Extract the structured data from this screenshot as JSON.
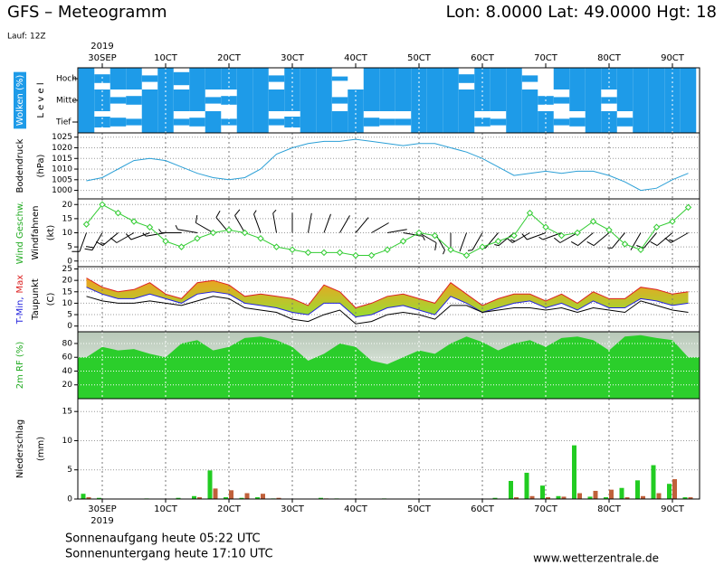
{
  "header": {
    "title": "GFS – Meteogramm",
    "location": "Lon: 8.0000  Lat: 49.0000  Hgt: 18",
    "run": "Lauf: 12Z"
  },
  "time_axis": {
    "year": "2019",
    "categories": [
      null,
      "30SEP",
      null,
      null,
      null,
      "10CT",
      null,
      null,
      null,
      "20CT",
      null,
      null,
      null,
      "30CT",
      null,
      null,
      null,
      "40CT",
      null,
      null,
      null,
      "50CT",
      null,
      null,
      null,
      "60CT",
      null,
      null,
      null,
      "70CT",
      null,
      null,
      null,
      "80CT",
      null,
      null,
      null,
      "90CT",
      null
    ]
  },
  "chart_data": [
    {
      "type": "cloud",
      "ylabel": [
        [
          {
            "text": "Wolken (%)",
            "color": "#ffffff",
            "bg": "#1e9be8"
          }
        ],
        [
          {
            "text": "L e v e l",
            "color": "#000000"
          }
        ]
      ],
      "series": [
        {
          "name": "Hoch",
          "color": "#1e9be8",
          "values": [
            100,
            40,
            100,
            100,
            30,
            100,
            60,
            100,
            100,
            100,
            100,
            100,
            30,
            100,
            100,
            100,
            20,
            0,
            100,
            100,
            100,
            100,
            100,
            100,
            40,
            100,
            100,
            100,
            30,
            0,
            100,
            100,
            100,
            100,
            100,
            100,
            100,
            100,
            100
          ]
        },
        {
          "name": "Mittel",
          "color": "#1e9be8",
          "values": [
            100,
            100,
            30,
            40,
            100,
            100,
            100,
            100,
            30,
            40,
            100,
            100,
            100,
            100,
            100,
            100,
            30,
            100,
            100,
            100,
            100,
            100,
            100,
            100,
            100,
            100,
            100,
            100,
            100,
            40,
            30,
            100,
            100,
            30,
            100,
            100,
            100,
            100,
            100
          ]
        },
        {
          "name": "Tief",
          "color": "#1e9be8",
          "values": [
            100,
            50,
            40,
            30,
            100,
            100,
            30,
            40,
            100,
            30,
            100,
            100,
            30,
            50,
            100,
            100,
            100,
            100,
            40,
            30,
            30,
            100,
            100,
            100,
            100,
            40,
            30,
            100,
            100,
            100,
            30,
            40,
            100,
            100,
            40,
            100,
            100,
            100,
            100
          ]
        }
      ]
    },
    {
      "type": "line",
      "ylabel": [
        [
          {
            "text": "Bodendruck",
            "color": "#000000"
          }
        ],
        [
          {
            "text": "(hPa)",
            "color": "#000000"
          }
        ]
      ],
      "ylim": [
        996,
        1027
      ],
      "yticks": [
        1000,
        1005,
        1010,
        1015,
        1020,
        1025
      ],
      "grid": true,
      "series": [
        {
          "color": "#2a9fd6",
          "values": [
            1004.5,
            1006,
            1010,
            1014,
            1015,
            1014,
            1011,
            1008,
            1006,
            1005,
            1006,
            1010,
            1017,
            1020,
            1022,
            1023,
            1023,
            1024,
            1023,
            1022,
            1021,
            1022,
            1022,
            1020,
            1018,
            1015,
            1011,
            1007,
            1008,
            1009,
            1008,
            1009,
            1009,
            1007,
            1004,
            1000,
            1001,
            1005,
            1008
          ]
        }
      ]
    },
    {
      "type": "wind",
      "ylabel": [
        [
          {
            "text": "Wind Geschw.",
            "color": "#22aa22"
          }
        ],
        [
          {
            "text": "Windfahnen",
            "color": "#000000"
          }
        ],
        [
          {
            "text": "(kt)",
            "color": "#000000"
          }
        ]
      ],
      "ylim": [
        -2,
        22
      ],
      "yticks": [
        0,
        5,
        10,
        15,
        20
      ],
      "grid": true,
      "series": [
        {
          "color": "#33cc33",
          "values": [
            13,
            20,
            17,
            14,
            12,
            7,
            5,
            8,
            10,
            11,
            10,
            8,
            5,
            4,
            3,
            3,
            3,
            2,
            2,
            4,
            7,
            10,
            9,
            4,
            2,
            5,
            7,
            9,
            17,
            12,
            9,
            10,
            14,
            11,
            6,
            4,
            12,
            14,
            19
          ]
        }
      ],
      "directions": [
        200,
        210,
        230,
        240,
        250,
        260,
        270,
        280,
        300,
        320,
        330,
        340,
        350,
        0,
        10,
        20,
        30,
        40,
        60,
        80,
        100,
        120,
        150,
        180,
        200,
        210,
        220,
        230,
        240,
        250,
        250,
        240,
        230,
        230,
        220,
        210,
        220,
        230,
        240
      ],
      "barb_color": "#000000"
    },
    {
      "type": "band",
      "ylabel": [
        [
          {
            "text": "T-Min,",
            "color": "#2222dd"
          },
          {
            "text": "Max",
            "color": "#dd2222"
          }
        ],
        [
          {
            "text": "Taupunkt",
            "color": "#000000"
          }
        ],
        [
          {
            "text": "(C)",
            "color": "#000000"
          }
        ]
      ],
      "ylim": [
        -2.5,
        26
      ],
      "yticks": [
        0,
        5,
        10,
        15,
        20,
        25
      ],
      "grid": true,
      "fill_colors": [
        "#f0a020",
        "#99dd33"
      ],
      "series": [
        {
          "color": "#dd2222",
          "values": [
            21,
            17,
            15,
            16,
            19,
            14,
            12,
            19,
            20,
            18,
            13,
            14,
            13,
            12,
            9,
            18,
            15,
            8,
            10,
            13,
            14,
            12,
            10,
            19,
            14,
            9,
            12,
            14,
            14,
            11,
            14,
            10,
            15,
            12,
            12,
            17,
            16,
            14,
            15
          ]
        },
        {
          "color": "#2222dd",
          "values": [
            17,
            14,
            12,
            12,
            14,
            12,
            10,
            14,
            15,
            14,
            10,
            9,
            8,
            6,
            5,
            10,
            10,
            4,
            5,
            8,
            9,
            7,
            5,
            13,
            10,
            6,
            8,
            10,
            11,
            8,
            10,
            7,
            11,
            8,
            8,
            12,
            11,
            9,
            10
          ]
        },
        {
          "color": "#000000",
          "values": [
            13,
            11,
            10,
            10,
            11,
            10,
            9,
            11,
            13,
            12,
            8,
            7,
            6,
            3,
            2,
            5,
            7,
            1,
            2,
            5,
            6,
            5,
            3,
            9,
            9,
            6,
            7,
            8,
            8,
            7,
            8,
            6,
            8,
            7,
            6,
            11,
            9,
            7,
            6
          ]
        }
      ]
    },
    {
      "type": "area",
      "ylabel": [
        [
          {
            "text": "2m RF (%)",
            "color": "#22aa22"
          }
        ]
      ],
      "ylim": [
        0,
        97
      ],
      "yticks": [
        20,
        40,
        60,
        80
      ],
      "grid": false,
      "series": [
        {
          "color": "#22cc22",
          "values": [
            60,
            75,
            70,
            72,
            65,
            60,
            80,
            85,
            70,
            75,
            88,
            90,
            85,
            75,
            55,
            65,
            80,
            75,
            55,
            50,
            60,
            70,
            65,
            80,
            90,
            82,
            70,
            80,
            85,
            75,
            88,
            90,
            85,
            70,
            90,
            92,
            88,
            85,
            60
          ]
        }
      ]
    },
    {
      "type": "bar",
      "ylabel": [
        [
          {
            "text": "Niederschlag",
            "color": "#000000"
          }
        ],
        [
          {
            "text": "(mm)",
            "color": "#000000"
          }
        ]
      ],
      "ylim": [
        0,
        17.2
      ],
      "yticks": [
        0,
        5,
        10,
        15
      ],
      "grid": true,
      "series": [
        {
          "color": "#22cc22",
          "values": [
            0.9,
            0.2,
            0,
            0,
            0.1,
            0,
            0.2,
            0.5,
            4.9,
            0.3,
            0.2,
            0.3,
            0.1,
            0,
            0,
            0.2,
            0.1,
            0,
            0,
            0.1,
            0,
            0,
            0,
            0,
            0,
            0,
            0.2,
            3.1,
            4.5,
            2.3,
            0.5,
            9.2,
            0.4,
            0.3,
            1.9,
            3.2,
            5.8,
            2.6,
            0.3
          ]
        },
        {
          "color": "#c0603a",
          "values": [
            0.3,
            0,
            0,
            0,
            0,
            0,
            0,
            0.3,
            1.8,
            1.5,
            1.0,
            0.9,
            0.2,
            0,
            0,
            0.1,
            0,
            0,
            0,
            0,
            0,
            0,
            0,
            0,
            0,
            0,
            0,
            0.3,
            0.5,
            0.3,
            0.4,
            1.0,
            1.4,
            1.6,
            0.3,
            0.5,
            1.0,
            3.4,
            0.3
          ]
        }
      ]
    }
  ],
  "footer": {
    "sunrise": "Sonnenaufgang heute 05:22 UTC",
    "sunset": "Sonnenuntergang heute 17:10 UTC",
    "source": "www.wetterzentrale.de"
  }
}
